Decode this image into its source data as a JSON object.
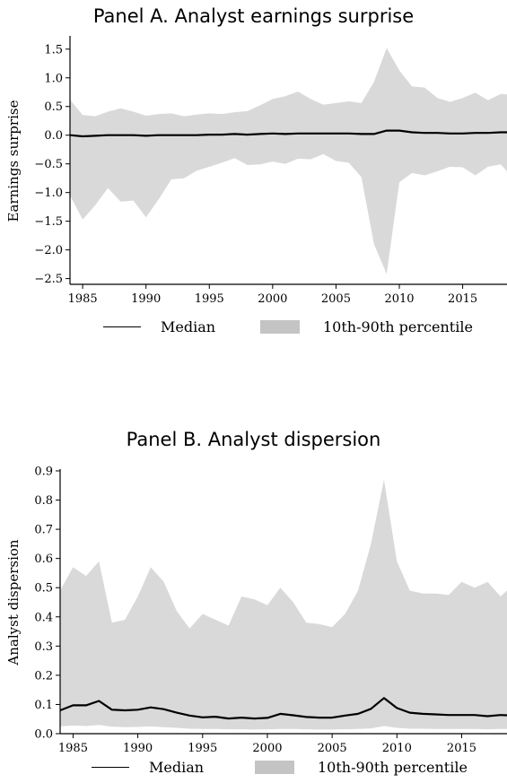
{
  "chart_data": [
    {
      "type": "area",
      "title": "Panel A. Analyst earnings surprise",
      "ylabel": "Earnings surprise",
      "xlabel": "",
      "xlim": [
        1984,
        2018.5
      ],
      "ylim": [
        -2.6,
        1.7
      ],
      "xticks": [
        1985,
        1990,
        1995,
        2000,
        2005,
        2010,
        2015
      ],
      "yticks": [
        1.5,
        1.0,
        0.5,
        0.0,
        -0.5,
        -1.0,
        -1.5,
        -2.0,
        -2.5
      ],
      "ytick_labels": [
        "1.5",
        "1.0",
        "0.5",
        "0.0",
        "−0.5",
        "−1.0",
        "−1.5",
        "−2.0",
        "−2.5"
      ],
      "x": [
        1984,
        1985,
        1986,
        1987,
        1988,
        1989,
        1990,
        1991,
        1992,
        1993,
        1994,
        1995,
        1996,
        1997,
        1998,
        1999,
        2000,
        2001,
        2002,
        2003,
        2004,
        2005,
        2006,
        2007,
        2008,
        2009,
        2010,
        2011,
        2012,
        2013,
        2014,
        2015,
        2016,
        2017,
        2018,
        2018.5
      ],
      "series": [
        {
          "name": "Median",
          "kind": "line",
          "color": "#000000",
          "values": [
            0.0,
            -0.02,
            -0.01,
            0.0,
            0.0,
            0.0,
            -0.01,
            0.0,
            0.0,
            0.0,
            0.0,
            0.01,
            0.01,
            0.02,
            0.01,
            0.02,
            0.03,
            0.02,
            0.03,
            0.03,
            0.03,
            0.03,
            0.03,
            0.02,
            0.02,
            0.08,
            0.08,
            0.05,
            0.04,
            0.04,
            0.03,
            0.03,
            0.04,
            0.04,
            0.05,
            0.05
          ]
        },
        {
          "name": "10th-90th percentile",
          "kind": "band",
          "color": "#d9d9d9",
          "upper": [
            0.62,
            0.35,
            0.33,
            0.41,
            0.47,
            0.41,
            0.34,
            0.37,
            0.38,
            0.33,
            0.36,
            0.38,
            0.37,
            0.4,
            0.42,
            0.52,
            0.63,
            0.68,
            0.76,
            0.63,
            0.53,
            0.56,
            0.59,
            0.56,
            0.93,
            1.52,
            1.13,
            0.85,
            0.83,
            0.65,
            0.58,
            0.65,
            0.74,
            0.61,
            0.72,
            0.71
          ],
          "lower": [
            -1.05,
            -1.47,
            -1.22,
            -0.92,
            -1.16,
            -1.14,
            -1.43,
            -1.12,
            -0.77,
            -0.75,
            -0.62,
            -0.55,
            -0.48,
            -0.4,
            -0.52,
            -0.51,
            -0.46,
            -0.5,
            -0.41,
            -0.42,
            -0.33,
            -0.45,
            -0.48,
            -0.73,
            -1.9,
            -2.42,
            -0.82,
            -0.66,
            -0.7,
            -0.63,
            -0.55,
            -0.56,
            -0.7,
            -0.55,
            -0.51,
            -0.63
          ]
        }
      ],
      "legend": {
        "placement": "bottom",
        "line": "Median",
        "band": "10th-90th percentile"
      }
    },
    {
      "type": "area",
      "title": "Panel B. Analyst dispersion",
      "ylabel": "Analyst dispersion",
      "xlabel": "",
      "xlim": [
        1984,
        2018.5
      ],
      "ylim": [
        0.0,
        0.9
      ],
      "xticks": [
        1985,
        1990,
        1995,
        2000,
        2005,
        2010,
        2015
      ],
      "yticks": [
        0.9,
        0.8,
        0.7,
        0.6,
        0.5,
        0.4,
        0.3,
        0.2,
        0.1,
        0.0
      ],
      "ytick_labels": [
        "0.9",
        "0.8",
        "0.7",
        "0.6",
        "0.5",
        "0.4",
        "0.3",
        "0.2",
        "0.1",
        "0.0"
      ],
      "x": [
        1984,
        1985,
        1986,
        1987,
        1988,
        1989,
        1990,
        1991,
        1992,
        1993,
        1994,
        1995,
        1996,
        1997,
        1998,
        1999,
        2000,
        2001,
        2002,
        2003,
        2004,
        2005,
        2006,
        2007,
        2008,
        2009,
        2010,
        2011,
        2012,
        2013,
        2014,
        2015,
        2016,
        2017,
        2018,
        2018.5
      ],
      "series": [
        {
          "name": "Median",
          "kind": "line",
          "color": "#000000",
          "values": [
            0.08,
            0.097,
            0.097,
            0.112,
            0.082,
            0.08,
            0.082,
            0.09,
            0.084,
            0.072,
            0.062,
            0.056,
            0.058,
            0.052,
            0.055,
            0.052,
            0.054,
            0.068,
            0.063,
            0.057,
            0.055,
            0.055,
            0.062,
            0.068,
            0.085,
            0.122,
            0.088,
            0.072,
            0.068,
            0.066,
            0.064,
            0.064,
            0.064,
            0.06,
            0.064,
            0.063
          ]
        },
        {
          "name": "10th-90th percentile",
          "kind": "band",
          "color": "#d9d9d9",
          "upper": [
            0.49,
            0.57,
            0.54,
            0.59,
            0.38,
            0.39,
            0.47,
            0.57,
            0.52,
            0.42,
            0.36,
            0.41,
            0.39,
            0.37,
            0.47,
            0.46,
            0.44,
            0.5,
            0.45,
            0.38,
            0.375,
            0.365,
            0.41,
            0.49,
            0.65,
            0.87,
            0.59,
            0.49,
            0.48,
            0.48,
            0.475,
            0.52,
            0.5,
            0.52,
            0.47,
            0.49
          ],
          "lower": [
            0.025,
            0.028,
            0.026,
            0.03,
            0.024,
            0.022,
            0.023,
            0.025,
            0.022,
            0.02,
            0.017,
            0.016,
            0.016,
            0.015,
            0.015,
            0.014,
            0.015,
            0.016,
            0.016,
            0.015,
            0.014,
            0.014,
            0.015,
            0.016,
            0.018,
            0.026,
            0.02,
            0.017,
            0.017,
            0.016,
            0.016,
            0.016,
            0.016,
            0.015,
            0.016,
            0.016
          ]
        }
      ],
      "legend": {
        "placement": "bottom",
        "line": "Median",
        "band": "10th-90th percentile"
      }
    }
  ]
}
